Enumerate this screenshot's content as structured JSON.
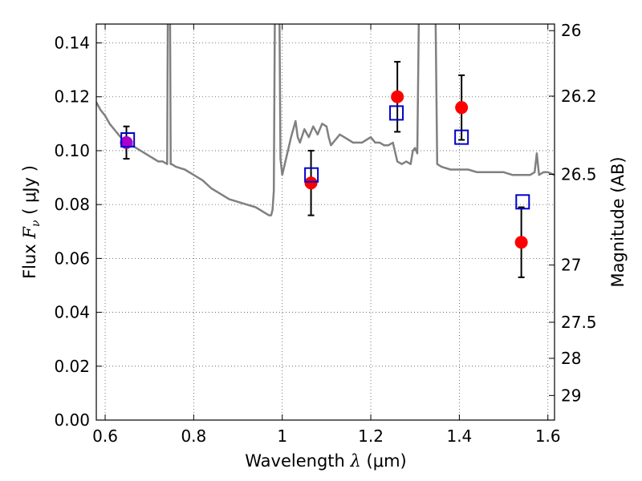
{
  "chart_data": {
    "type": "scatter",
    "xlabel_text": "Wavelength",
    "xlabel_symbol": "λ",
    "xlabel_unit": "(μm)",
    "ylabel_text": "Flux",
    "ylabel_symbol": "F",
    "ylabel_subscript": "ν",
    "ylabel_unit": "( μJy )",
    "y2label": "Magnitude (AB)",
    "xlim": [
      0.58,
      1.615
    ],
    "ylim": [
      0.0,
      0.147
    ],
    "grid": true,
    "grid_style": "dotted",
    "x_ticks": [
      0.6,
      0.8,
      1.0,
      1.2,
      1.4,
      1.6
    ],
    "x_tick_labels": [
      "0.6",
      "0.8",
      "1",
      "1.2",
      "1.4",
      "1.6"
    ],
    "y_ticks": [
      0.0,
      0.02,
      0.04,
      0.06,
      0.08,
      0.1,
      0.12,
      0.14
    ],
    "y_tick_labels": [
      "0.00",
      "0.02",
      "0.04",
      "0.06",
      "0.08",
      "0.10",
      "0.12",
      "0.14"
    ],
    "y2_ticks": [
      {
        "label": "26",
        "mag": 26.0
      },
      {
        "label": "26.2",
        "mag": 26.2
      },
      {
        "label": "26.5",
        "mag": 26.5
      },
      {
        "label": "27",
        "mag": 27.0
      },
      {
        "label": "27.5",
        "mag": 27.5
      },
      {
        "label": "28",
        "mag": 28.0
      },
      {
        "label": "29",
        "mag": 29.0
      }
    ],
    "colors": {
      "model": "#808080",
      "observed": "#ff0000",
      "errorbar": "#000000",
      "model_points": "#0000cc",
      "overlap": "#aa00cc"
    },
    "series": [
      {
        "kind": "line",
        "x": [
          0.58,
          0.59,
          0.6,
          0.61,
          0.62,
          0.63,
          0.64,
          0.65,
          0.66,
          0.67,
          0.68,
          0.69,
          0.7,
          0.71,
          0.72,
          0.73,
          0.74,
          0.742,
          0.744,
          0.746,
          0.748,
          0.75,
          0.76,
          0.78,
          0.8,
          0.82,
          0.84,
          0.86,
          0.88,
          0.9,
          0.92,
          0.94,
          0.96,
          0.97,
          0.975,
          0.978,
          0.981,
          0.984,
          0.987,
          0.99,
          0.993,
          0.996,
          1.0,
          1.01,
          1.02,
          1.03,
          1.035,
          1.04,
          1.05,
          1.06,
          1.07,
          1.08,
          1.09,
          1.1,
          1.105,
          1.11,
          1.12,
          1.13,
          1.14,
          1.15,
          1.16,
          1.17,
          1.18,
          1.19,
          1.2,
          1.21,
          1.22,
          1.23,
          1.24,
          1.25,
          1.26,
          1.27,
          1.28,
          1.29,
          1.295,
          1.3,
          1.305,
          1.31,
          1.32,
          1.34,
          1.345,
          1.35,
          1.36,
          1.38,
          1.4,
          1.42,
          1.44,
          1.46,
          1.48,
          1.5,
          1.52,
          1.54,
          1.55,
          1.56,
          1.57,
          1.575,
          1.58,
          1.59,
          1.6,
          1.615
        ],
        "y": [
          0.118,
          0.115,
          0.113,
          0.11,
          0.108,
          0.106,
          0.104,
          0.103,
          0.102,
          0.101,
          0.1,
          0.099,
          0.098,
          0.097,
          0.096,
          0.096,
          0.095,
          0.17,
          0.17,
          0.17,
          0.095,
          0.095,
          0.094,
          0.093,
          0.091,
          0.089,
          0.086,
          0.084,
          0.082,
          0.081,
          0.08,
          0.079,
          0.077,
          0.076,
          0.076,
          0.078,
          0.085,
          0.17,
          0.17,
          0.17,
          0.17,
          0.097,
          0.091,
          0.098,
          0.105,
          0.111,
          0.105,
          0.103,
          0.108,
          0.105,
          0.109,
          0.106,
          0.11,
          0.109,
          0.105,
          0.102,
          0.104,
          0.106,
          0.105,
          0.104,
          0.103,
          0.103,
          0.103,
          0.104,
          0.105,
          0.103,
          0.103,
          0.102,
          0.102,
          0.103,
          0.096,
          0.095,
          0.096,
          0.095,
          0.1,
          0.101,
          0.099,
          0.17,
          0.17,
          0.17,
          0.17,
          0.095,
          0.094,
          0.093,
          0.093,
          0.093,
          0.092,
          0.092,
          0.092,
          0.092,
          0.091,
          0.091,
          0.091,
          0.091,
          0.092,
          0.099,
          0.091,
          0.092,
          0.092,
          0.091
        ]
      },
      {
        "kind": "points",
        "name": "observed",
        "x": [
          0.648,
          1.065,
          1.26,
          1.405,
          1.54
        ],
        "y": [
          0.103,
          0.088,
          0.12,
          0.116,
          0.066
        ],
        "yerr": [
          0.006,
          0.012,
          0.013,
          0.012,
          0.013
        ]
      },
      {
        "kind": "points",
        "name": "model",
        "x": [
          0.651,
          1.066,
          1.258,
          1.405,
          1.543
        ],
        "y": [
          0.104,
          0.091,
          0.114,
          0.105,
          0.081
        ]
      }
    ]
  }
}
